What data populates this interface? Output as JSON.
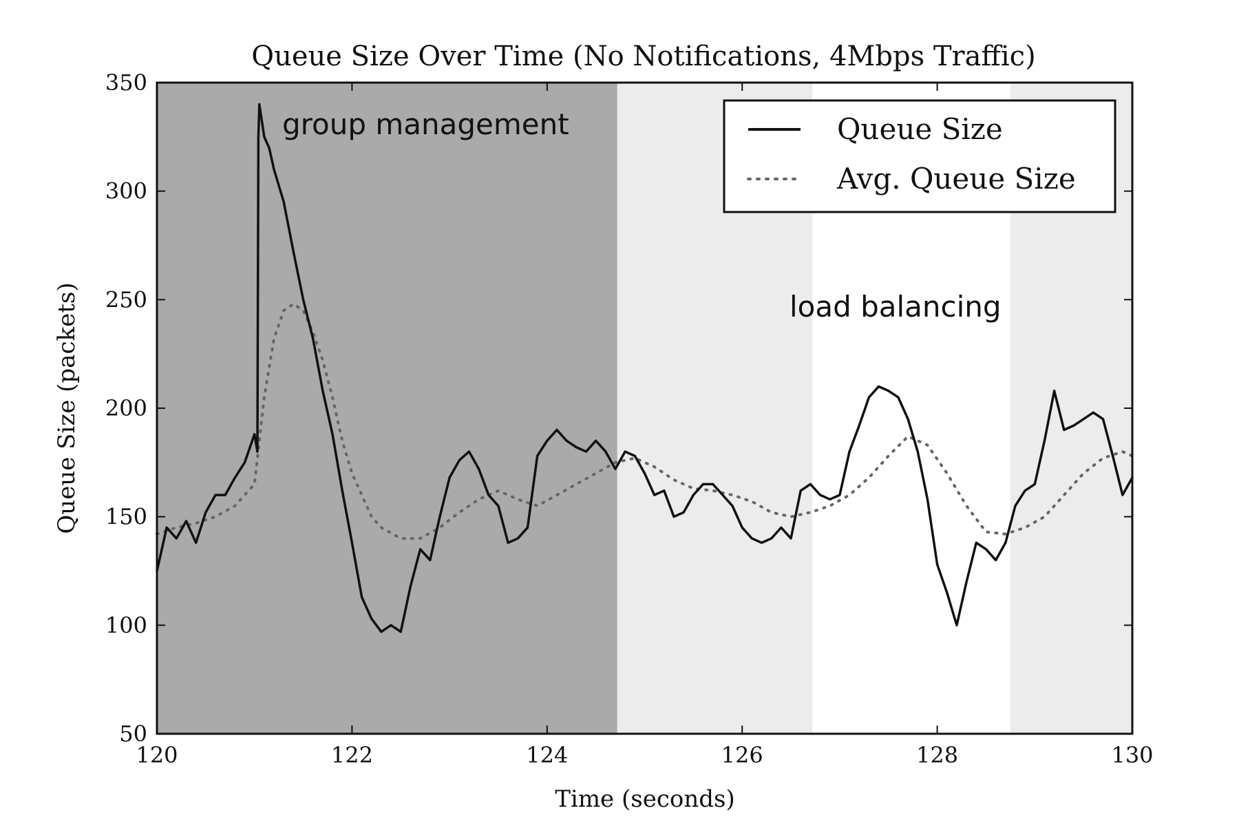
{
  "chart_data": {
    "type": "line",
    "title": "Queue Size Over Time (No Notifications, 4Mbps Traffic)",
    "xlabel": "Time (seconds)",
    "ylabel": "Queue Size (packets)",
    "xlim": [
      120,
      130
    ],
    "ylim": [
      50,
      350
    ],
    "xticks": [
      120,
      122,
      124,
      126,
      128,
      130
    ],
    "yticks": [
      50,
      100,
      150,
      200,
      250,
      300,
      350
    ],
    "grid": false,
    "legend_position": "top-right",
    "regions": [
      {
        "label": "group management",
        "x_start": 120.0,
        "x_end": 124.72,
        "color": "#aaaaaa"
      },
      {
        "label": "",
        "x_start": 124.72,
        "x_end": 126.72,
        "color": "#ececec"
      },
      {
        "label": "load balancing",
        "x_start": 126.72,
        "x_end": 128.75,
        "color": "#ffffff"
      },
      {
        "label": "",
        "x_start": 128.75,
        "x_end": 130.0,
        "color": "#ececec"
      }
    ],
    "series": [
      {
        "name": "Queue Size",
        "style": "solid",
        "color": "#111111",
        "points": [
          [
            120.0,
            125
          ],
          [
            120.1,
            145
          ],
          [
            120.2,
            140
          ],
          [
            120.3,
            148
          ],
          [
            120.4,
            138
          ],
          [
            120.5,
            152
          ],
          [
            120.6,
            160
          ],
          [
            120.7,
            160
          ],
          [
            120.8,
            168
          ],
          [
            120.9,
            175
          ],
          [
            121.0,
            188
          ],
          [
            121.03,
            180
          ],
          [
            121.04,
            325
          ],
          [
            121.05,
            340
          ],
          [
            121.1,
            325
          ],
          [
            121.15,
            320
          ],
          [
            121.2,
            310
          ],
          [
            121.3,
            295
          ],
          [
            121.4,
            272
          ],
          [
            121.5,
            250
          ],
          [
            121.6,
            232
          ],
          [
            121.7,
            208
          ],
          [
            121.8,
            188
          ],
          [
            121.9,
            162
          ],
          [
            122.0,
            138
          ],
          [
            122.1,
            113
          ],
          [
            122.2,
            103
          ],
          [
            122.3,
            97
          ],
          [
            122.4,
            100
          ],
          [
            122.5,
            97
          ],
          [
            122.6,
            118
          ],
          [
            122.7,
            135
          ],
          [
            122.8,
            130
          ],
          [
            122.9,
            150
          ],
          [
            123.0,
            168
          ],
          [
            123.1,
            176
          ],
          [
            123.2,
            180
          ],
          [
            123.3,
            172
          ],
          [
            123.4,
            160
          ],
          [
            123.5,
            155
          ],
          [
            123.6,
            138
          ],
          [
            123.7,
            140
          ],
          [
            123.8,
            145
          ],
          [
            123.9,
            178
          ],
          [
            124.0,
            185
          ],
          [
            124.1,
            190
          ],
          [
            124.2,
            185
          ],
          [
            124.3,
            182
          ],
          [
            124.4,
            180
          ],
          [
            124.5,
            185
          ],
          [
            124.6,
            180
          ],
          [
            124.7,
            172
          ],
          [
            124.8,
            180
          ],
          [
            124.9,
            178
          ],
          [
            125.0,
            170
          ],
          [
            125.1,
            160
          ],
          [
            125.2,
            162
          ],
          [
            125.3,
            150
          ],
          [
            125.4,
            152
          ],
          [
            125.5,
            160
          ],
          [
            125.6,
            165
          ],
          [
            125.7,
            165
          ],
          [
            125.8,
            160
          ],
          [
            125.9,
            155
          ],
          [
            126.0,
            145
          ],
          [
            126.1,
            140
          ],
          [
            126.2,
            138
          ],
          [
            126.3,
            140
          ],
          [
            126.4,
            145
          ],
          [
            126.5,
            140
          ],
          [
            126.6,
            162
          ],
          [
            126.7,
            165
          ],
          [
            126.8,
            160
          ],
          [
            126.9,
            158
          ],
          [
            127.0,
            160
          ],
          [
            127.1,
            180
          ],
          [
            127.2,
            192
          ],
          [
            127.3,
            205
          ],
          [
            127.4,
            210
          ],
          [
            127.5,
            208
          ],
          [
            127.6,
            205
          ],
          [
            127.7,
            195
          ],
          [
            127.8,
            180
          ],
          [
            127.9,
            158
          ],
          [
            128.0,
            128
          ],
          [
            128.1,
            115
          ],
          [
            128.2,
            100
          ],
          [
            128.3,
            120
          ],
          [
            128.4,
            138
          ],
          [
            128.5,
            135
          ],
          [
            128.6,
            130
          ],
          [
            128.7,
            138
          ],
          [
            128.8,
            155
          ],
          [
            128.9,
            162
          ],
          [
            129.0,
            165
          ],
          [
            129.1,
            185
          ],
          [
            129.2,
            208
          ],
          [
            129.3,
            190
          ],
          [
            129.4,
            192
          ],
          [
            129.5,
            195
          ],
          [
            129.6,
            198
          ],
          [
            129.7,
            195
          ],
          [
            129.8,
            178
          ],
          [
            129.9,
            160
          ],
          [
            130.0,
            168
          ]
        ]
      },
      {
        "name": "Avg. Queue Size",
        "style": "dotted",
        "color": "#666666",
        "points": [
          [
            120.0,
            142
          ],
          [
            120.2,
            145
          ],
          [
            120.4,
            147
          ],
          [
            120.6,
            150
          ],
          [
            120.8,
            155
          ],
          [
            121.0,
            165
          ],
          [
            121.1,
            205
          ],
          [
            121.2,
            232
          ],
          [
            121.3,
            245
          ],
          [
            121.4,
            248
          ],
          [
            121.5,
            245
          ],
          [
            121.6,
            235
          ],
          [
            121.7,
            222
          ],
          [
            121.8,
            205
          ],
          [
            121.9,
            185
          ],
          [
            122.0,
            170
          ],
          [
            122.1,
            160
          ],
          [
            122.2,
            150
          ],
          [
            122.3,
            145
          ],
          [
            122.5,
            140
          ],
          [
            122.7,
            140
          ],
          [
            122.9,
            145
          ],
          [
            123.1,
            152
          ],
          [
            123.3,
            158
          ],
          [
            123.5,
            162
          ],
          [
            123.7,
            158
          ],
          [
            123.9,
            155
          ],
          [
            124.1,
            160
          ],
          [
            124.3,
            165
          ],
          [
            124.5,
            170
          ],
          [
            124.7,
            175
          ],
          [
            124.9,
            177
          ],
          [
            125.1,
            173
          ],
          [
            125.3,
            167
          ],
          [
            125.5,
            163
          ],
          [
            125.7,
            162
          ],
          [
            125.9,
            160
          ],
          [
            126.1,
            157
          ],
          [
            126.3,
            152
          ],
          [
            126.5,
            150
          ],
          [
            126.7,
            152
          ],
          [
            126.9,
            155
          ],
          [
            127.1,
            160
          ],
          [
            127.3,
            168
          ],
          [
            127.5,
            178
          ],
          [
            127.7,
            187
          ],
          [
            127.9,
            183
          ],
          [
            128.1,
            170
          ],
          [
            128.3,
            155
          ],
          [
            128.5,
            143
          ],
          [
            128.7,
            142
          ],
          [
            128.9,
            145
          ],
          [
            129.1,
            150
          ],
          [
            129.3,
            160
          ],
          [
            129.5,
            170
          ],
          [
            129.7,
            177
          ],
          [
            129.9,
            180
          ],
          [
            130.0,
            178
          ]
        ]
      }
    ]
  }
}
